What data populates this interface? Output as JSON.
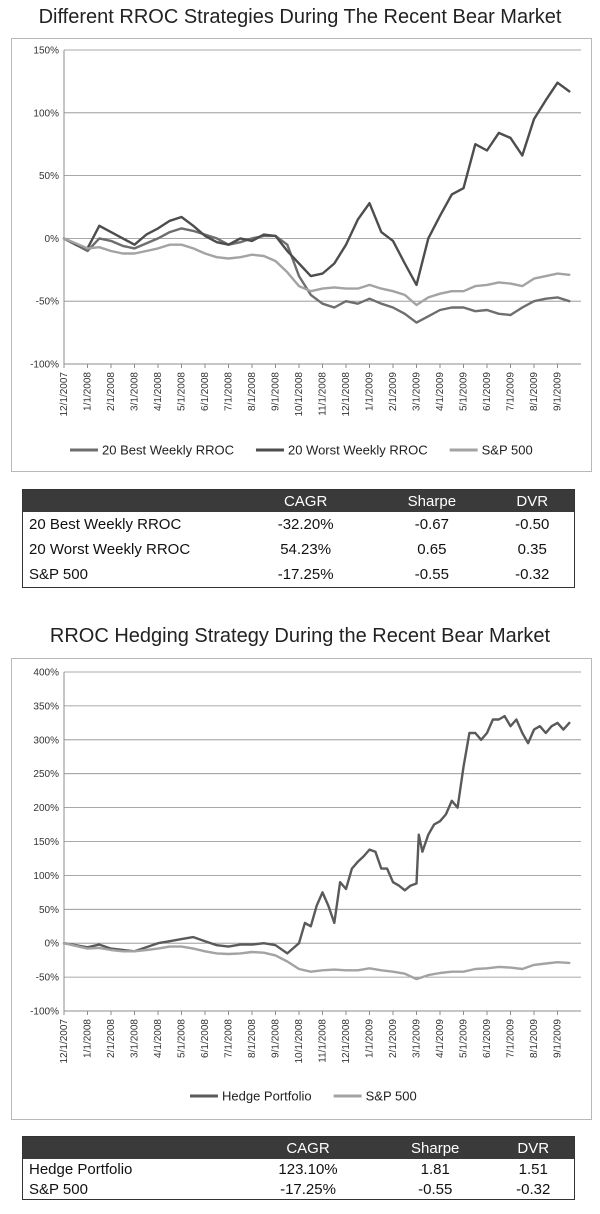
{
  "chart_data": [
    {
      "type": "line",
      "title": "Different RROC Strategies During The Recent Bear Market",
      "xlabel": "",
      "ylabel": "",
      "ylim": [
        -100,
        150
      ],
      "yticks": [
        -100,
        -50,
        0,
        50,
        100,
        150
      ],
      "ytick_labels": [
        "-100%",
        "-50%",
        "0%",
        "50%",
        "100%",
        "150%"
      ],
      "xtick_labels": [
        "12/1/2007",
        "1/1/2008",
        "2/1/2008",
        "3/1/2008",
        "4/1/2008",
        "5/1/2008",
        "6/1/2008",
        "7/1/2008",
        "8/1/2008",
        "9/1/2008",
        "10/1/2008",
        "11/1/2008",
        "12/1/2008",
        "1/1/2009",
        "2/1/2009",
        "3/1/2009",
        "4/1/2009",
        "5/1/2009",
        "6/1/2009",
        "7/1/2009",
        "8/1/2009",
        "9/1/2009"
      ],
      "grid": true,
      "legend_position": "bottom",
      "series": [
        {
          "name": "20 Best Weekly RROC",
          "color": "#6e6e6e",
          "x": [
            0,
            0.5,
            1,
            1.5,
            2,
            2.5,
            3,
            3.5,
            4,
            4.5,
            5,
            5.5,
            6,
            6.5,
            7,
            7.5,
            8,
            8.5,
            9,
            9.5,
            10,
            10.5,
            11,
            11.5,
            12,
            12.5,
            13,
            13.5,
            14,
            14.5,
            15,
            15.5,
            16,
            16.5,
            17,
            17.5,
            18,
            18.5,
            19,
            19.5,
            20,
            20.5,
            21,
            21.5
          ],
          "values": [
            0,
            -5,
            -10,
            0,
            -2,
            -6,
            -8,
            -4,
            0,
            5,
            8,
            6,
            3,
            0,
            -5,
            -3,
            0,
            2,
            2,
            -5,
            -30,
            -45,
            -52,
            -55,
            -50,
            -52,
            -48,
            -52,
            -55,
            -60,
            -67,
            -62,
            -57,
            -55,
            -55,
            -58,
            -57,
            -60,
            -61,
            -55,
            -50,
            -48,
            -47,
            -50
          ]
        },
        {
          "name": "20 Worst Weekly RROC",
          "color": "#4d4d4d",
          "x": [
            0,
            0.5,
            1,
            1.5,
            2,
            2.5,
            3,
            3.5,
            4,
            4.5,
            5,
            5.5,
            6,
            6.5,
            7,
            7.5,
            8,
            8.5,
            9,
            9.5,
            10,
            10.5,
            11,
            11.5,
            12,
            12.5,
            13,
            13.5,
            14,
            14.5,
            15,
            15.5,
            16,
            16.5,
            17,
            17.5,
            18,
            18.5,
            19,
            19.5,
            20,
            20.5,
            21,
            21.5
          ],
          "values": [
            0,
            -5,
            -8,
            10,
            5,
            0,
            -5,
            3,
            8,
            14,
            17,
            10,
            2,
            -3,
            -5,
            0,
            -2,
            3,
            2,
            -10,
            -20,
            -30,
            -28,
            -20,
            -5,
            15,
            28,
            5,
            -2,
            -20,
            -37,
            0,
            18,
            35,
            40,
            75,
            70,
            84,
            80,
            66,
            95,
            110,
            124,
            117
          ]
        },
        {
          "name": "S&P 500",
          "color": "#a3a3a3",
          "x": [
            0,
            0.5,
            1,
            1.5,
            2,
            2.5,
            3,
            3.5,
            4,
            4.5,
            5,
            5.5,
            6,
            6.5,
            7,
            7.5,
            8,
            8.5,
            9,
            9.5,
            10,
            10.5,
            11,
            11.5,
            12,
            12.5,
            13,
            13.5,
            14,
            14.5,
            15,
            15.5,
            16,
            16.5,
            17,
            17.5,
            18,
            18.5,
            19,
            19.5,
            20,
            20.5,
            21,
            21.5
          ],
          "values": [
            0,
            -4,
            -8,
            -7,
            -10,
            -12,
            -12,
            -10,
            -8,
            -5,
            -5,
            -8,
            -12,
            -15,
            -16,
            -15,
            -13,
            -14,
            -18,
            -27,
            -38,
            -42,
            -40,
            -39,
            -40,
            -40,
            -37,
            -40,
            -42,
            -45,
            -53,
            -47,
            -44,
            -42,
            -42,
            -38,
            -37,
            -35,
            -36,
            -38,
            -32,
            -30,
            -28,
            -29
          ]
        }
      ]
    },
    {
      "type": "line",
      "title": "RROC Hedging Strategy During the Recent Bear Market",
      "xlabel": "",
      "ylabel": "",
      "ylim": [
        -100,
        400
      ],
      "yticks": [
        -100,
        -50,
        0,
        50,
        100,
        150,
        200,
        250,
        300,
        350,
        400
      ],
      "ytick_labels": [
        "-100%",
        "-50%",
        "0%",
        "50%",
        "100%",
        "150%",
        "200%",
        "250%",
        "300%",
        "350%",
        "400%"
      ],
      "xtick_labels": [
        "12/1/2007",
        "1/1/2008",
        "2/1/2008",
        "3/1/2008",
        "4/1/2008",
        "5/1/2008",
        "6/1/2008",
        "7/1/2008",
        "8/1/2008",
        "9/1/2008",
        "10/1/2008",
        "11/1/2008",
        "12/1/2008",
        "1/1/2009",
        "2/1/2009",
        "3/1/2009",
        "4/1/2009",
        "5/1/2009",
        "6/1/2009",
        "7/1/2009",
        "8/1/2009",
        "9/1/2009"
      ],
      "grid": true,
      "legend_position": "bottom",
      "series": [
        {
          "name": "Hedge Portfolio",
          "color": "#5a5a5a",
          "x": [
            0,
            0.5,
            1,
            1.5,
            2,
            2.5,
            3,
            3.5,
            4,
            4.5,
            5,
            5.5,
            6,
            6.5,
            7,
            7.5,
            8,
            8.5,
            9,
            9.5,
            10,
            10.25,
            10.5,
            10.75,
            11,
            11.25,
            11.5,
            11.75,
            12,
            12.25,
            12.5,
            12.75,
            13,
            13.25,
            13.5,
            13.75,
            14,
            14.25,
            14.5,
            14.75,
            15,
            15.1,
            15.25,
            15.5,
            15.75,
            16,
            16.25,
            16.5,
            16.75,
            17,
            17.25,
            17.5,
            17.75,
            18,
            18.25,
            18.5,
            18.75,
            19,
            19.25,
            19.5,
            19.75,
            20,
            20.25,
            20.5,
            20.75,
            21,
            21.25,
            21.5
          ],
          "values": [
            0,
            -3,
            -6,
            -2,
            -8,
            -10,
            -12,
            -6,
            0,
            3,
            6,
            9,
            3,
            -3,
            -5,
            -2,
            -2,
            0,
            -3,
            -15,
            0,
            30,
            25,
            55,
            75,
            55,
            30,
            90,
            80,
            110,
            120,
            128,
            138,
            135,
            110,
            110,
            90,
            85,
            78,
            85,
            88,
            160,
            135,
            160,
            175,
            180,
            190,
            210,
            200,
            260,
            310,
            310,
            300,
            310,
            330,
            330,
            335,
            320,
            330,
            310,
            295,
            315,
            320,
            310,
            320,
            325,
            315,
            325
          ]
        },
        {
          "name": "S&P 500",
          "color": "#a3a3a3",
          "x": [
            0,
            0.5,
            1,
            1.5,
            2,
            2.5,
            3,
            3.5,
            4,
            4.5,
            5,
            5.5,
            6,
            6.5,
            7,
            7.5,
            8,
            8.5,
            9,
            9.5,
            10,
            10.5,
            11,
            11.5,
            12,
            12.5,
            13,
            13.5,
            14,
            14.5,
            15,
            15.5,
            16,
            16.5,
            17,
            17.5,
            18,
            18.5,
            19,
            19.5,
            20,
            20.5,
            21,
            21.5
          ],
          "values": [
            0,
            -4,
            -8,
            -7,
            -10,
            -12,
            -12,
            -10,
            -8,
            -5,
            -5,
            -8,
            -12,
            -15,
            -16,
            -15,
            -13,
            -14,
            -18,
            -27,
            -38,
            -42,
            -40,
            -39,
            -40,
            -40,
            -37,
            -40,
            -42,
            -45,
            -53,
            -47,
            -44,
            -42,
            -42,
            -38,
            -37,
            -35,
            -36,
            -38,
            -32,
            -30,
            -28,
            -29
          ]
        }
      ]
    }
  ],
  "table1": {
    "headers": [
      "",
      "CAGR",
      "Sharpe",
      "DVR"
    ],
    "rows": [
      [
        "20 Best Weekly RROC",
        "-32.20%",
        "-0.67",
        "-0.50"
      ],
      [
        "20 Worst Weekly RROC",
        "54.23%",
        "0.65",
        "0.35"
      ],
      [
        "S&P 500",
        "-17.25%",
        "-0.55",
        "-0.32"
      ]
    ]
  },
  "table2": {
    "headers": [
      "",
      "CAGR",
      "Sharpe",
      "DVR"
    ],
    "rows": [
      [
        "Hedge Portfolio",
        "123.10%",
        "1.81",
        "1.51"
      ],
      [
        "S&P 500",
        "-17.25%",
        "-0.55",
        "-0.32"
      ]
    ]
  }
}
